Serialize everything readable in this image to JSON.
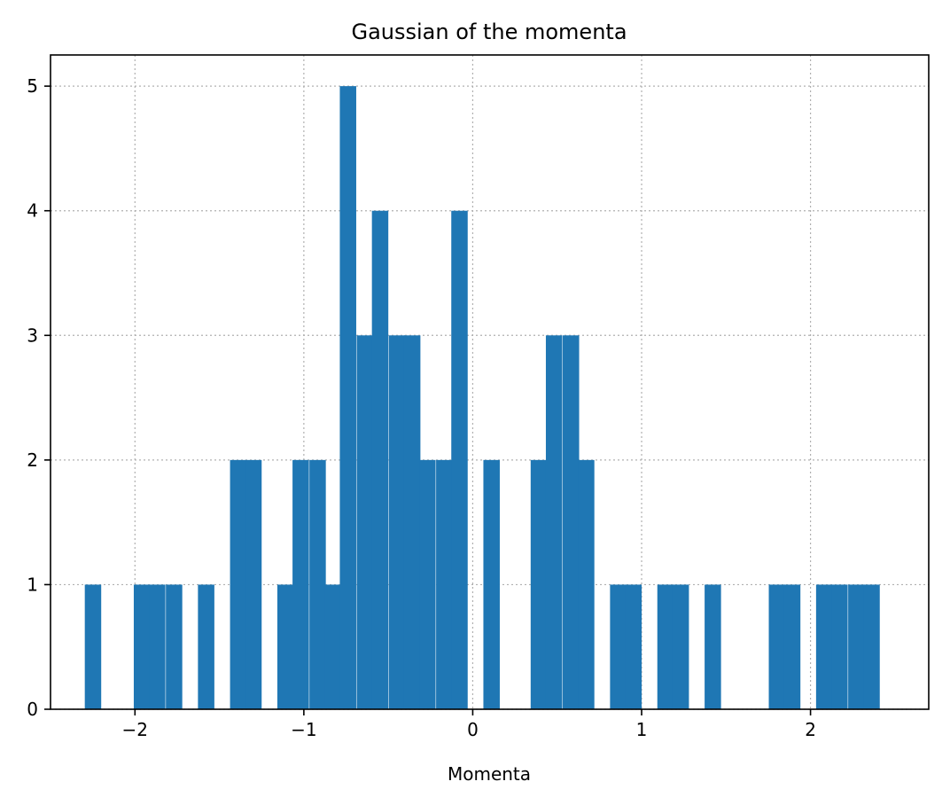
{
  "chart_data": {
    "type": "bar",
    "title": "Gaussian of the momenta",
    "xlabel": "Momenta",
    "ylabel": "",
    "xlim": [
      -2.5,
      2.7
    ],
    "ylim": [
      0,
      5.25
    ],
    "xticks": [
      -2,
      -1,
      0,
      1,
      2
    ],
    "xtick_labels": [
      "−2",
      "−1",
      "0",
      "1",
      "2"
    ],
    "yticks": [
      0,
      1,
      2,
      3,
      4,
      5
    ],
    "ytick_labels": [
      "0",
      "1",
      "2",
      "3",
      "4",
      "5"
    ],
    "grid": true,
    "bar_color": "#1f77b4",
    "bin_width": 0.094,
    "bins": [
      {
        "x": -2.25,
        "count": 1
      },
      {
        "x": -1.96,
        "count": 1
      },
      {
        "x": -1.87,
        "count": 1
      },
      {
        "x": -1.77,
        "count": 1
      },
      {
        "x": -1.58,
        "count": 1
      },
      {
        "x": -1.39,
        "count": 2
      },
      {
        "x": -1.3,
        "count": 2
      },
      {
        "x": -1.11,
        "count": 1
      },
      {
        "x": -1.02,
        "count": 2
      },
      {
        "x": -0.92,
        "count": 2
      },
      {
        "x": -0.83,
        "count": 1
      },
      {
        "x": -0.74,
        "count": 5
      },
      {
        "x": -0.64,
        "count": 3
      },
      {
        "x": -0.55,
        "count": 4
      },
      {
        "x": -0.45,
        "count": 3
      },
      {
        "x": -0.36,
        "count": 3
      },
      {
        "x": -0.27,
        "count": 2
      },
      {
        "x": -0.17,
        "count": 2
      },
      {
        "x": -0.08,
        "count": 4
      },
      {
        "x": 0.11,
        "count": 2
      },
      {
        "x": 0.39,
        "count": 2
      },
      {
        "x": 0.48,
        "count": 3
      },
      {
        "x": 0.58,
        "count": 3
      },
      {
        "x": 0.67,
        "count": 2
      },
      {
        "x": 0.86,
        "count": 1
      },
      {
        "x": 0.95,
        "count": 1
      },
      {
        "x": 1.14,
        "count": 1
      },
      {
        "x": 1.23,
        "count": 1
      },
      {
        "x": 1.42,
        "count": 1
      },
      {
        "x": 1.8,
        "count": 1
      },
      {
        "x": 1.89,
        "count": 1
      },
      {
        "x": 2.08,
        "count": 1
      },
      {
        "x": 2.17,
        "count": 1
      },
      {
        "x": 2.27,
        "count": 1
      },
      {
        "x": 2.36,
        "count": 1
      }
    ]
  }
}
